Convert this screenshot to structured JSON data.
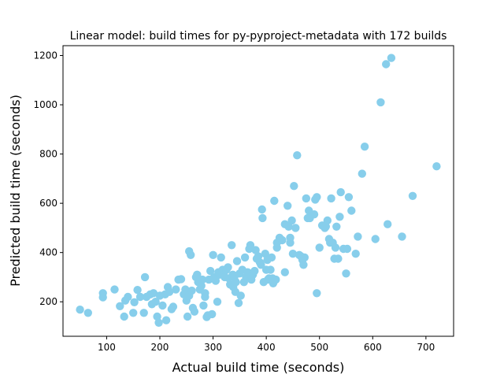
{
  "chart_data": {
    "type": "scatter",
    "title": "Linear model: build times for py-pyproject-metadata with 172 builds",
    "xlabel": "Actual build time (seconds)",
    "ylabel": "Predicted build time (seconds)",
    "xlim": [
      18,
      752
    ],
    "ylim": [
      60,
      1240
    ],
    "xticks": [
      100,
      200,
      300,
      400,
      500,
      600,
      700
    ],
    "yticks": [
      200,
      400,
      600,
      800,
      1000,
      1200
    ],
    "grid": false,
    "marker_color": "#87ceeb",
    "series": [
      {
        "points": [
          [
            50,
            168
          ],
          [
            65,
            155
          ],
          [
            93,
            235
          ],
          [
            93,
            218
          ],
          [
            115,
            250
          ],
          [
            125,
            182
          ],
          [
            133,
            140
          ],
          [
            135,
            205
          ],
          [
            140,
            220
          ],
          [
            150,
            155
          ],
          [
            152,
            198
          ],
          [
            158,
            248
          ],
          [
            163,
            220
          ],
          [
            170,
            155
          ],
          [
            172,
            300
          ],
          [
            175,
            220
          ],
          [
            182,
            230
          ],
          [
            185,
            190
          ],
          [
            188,
            235
          ],
          [
            192,
            200
          ],
          [
            195,
            140
          ],
          [
            198,
            115
          ],
          [
            200,
            225
          ],
          [
            205,
            185
          ],
          [
            210,
            230
          ],
          [
            212,
            125
          ],
          [
            215,
            260
          ],
          [
            218,
            240
          ],
          [
            222,
            170
          ],
          [
            225,
            180
          ],
          [
            230,
            250
          ],
          [
            235,
            290
          ],
          [
            240,
            292
          ],
          [
            245,
            230
          ],
          [
            248,
            250
          ],
          [
            250,
            205
          ],
          [
            252,
            140
          ],
          [
            255,
            405
          ],
          [
            255,
            225
          ],
          [
            258,
            390
          ],
          [
            260,
            245
          ],
          [
            262,
            175
          ],
          [
            265,
            160
          ],
          [
            268,
            300
          ],
          [
            270,
            310
          ],
          [
            272,
            280
          ],
          [
            275,
            250
          ],
          [
            278,
            265
          ],
          [
            280,
            290
          ],
          [
            282,
            185
          ],
          [
            285,
            235
          ],
          [
            285,
            220
          ],
          [
            288,
            138
          ],
          [
            290,
            145
          ],
          [
            292,
            290
          ],
          [
            295,
            325
          ],
          [
            298,
            150
          ],
          [
            300,
            390
          ],
          [
            302,
            300
          ],
          [
            305,
            285
          ],
          [
            308,
            200
          ],
          [
            310,
            320
          ],
          [
            312,
            310
          ],
          [
            315,
            380
          ],
          [
            318,
            330
          ],
          [
            320,
            310
          ],
          [
            322,
            300
          ],
          [
            325,
            330
          ],
          [
            328,
            340
          ],
          [
            330,
            295
          ],
          [
            332,
            270
          ],
          [
            335,
            430
          ],
          [
            337,
            310
          ],
          [
            338,
            260
          ],
          [
            340,
            300
          ],
          [
            342,
            240
          ],
          [
            343,
            280
          ],
          [
            345,
            365
          ],
          [
            348,
            195
          ],
          [
            350,
            315
          ],
          [
            352,
            225
          ],
          [
            355,
            330
          ],
          [
            358,
            280
          ],
          [
            360,
            380
          ],
          [
            362,
            300
          ],
          [
            365,
            320
          ],
          [
            368,
            415
          ],
          [
            370,
            430
          ],
          [
            372,
            290
          ],
          [
            372,
            305
          ],
          [
            375,
            310
          ],
          [
            378,
            325
          ],
          [
            380,
            410
          ],
          [
            382,
            375
          ],
          [
            385,
            385
          ],
          [
            388,
            360
          ],
          [
            390,
            350
          ],
          [
            392,
            575
          ],
          [
            393,
            540
          ],
          [
            395,
            280
          ],
          [
            398,
            395
          ],
          [
            400,
            330
          ],
          [
            402,
            370
          ],
          [
            403,
            290
          ],
          [
            405,
            295
          ],
          [
            408,
            330
          ],
          [
            410,
            380
          ],
          [
            412,
            295
          ],
          [
            413,
            275
          ],
          [
            415,
            285
          ],
          [
            415,
            610
          ],
          [
            418,
            290
          ],
          [
            420,
            420
          ],
          [
            420,
            440
          ],
          [
            425,
            460
          ],
          [
            430,
            450
          ],
          [
            435,
            515
          ],
          [
            435,
            320
          ],
          [
            440,
            590
          ],
          [
            442,
            505
          ],
          [
            445,
            460
          ],
          [
            445,
            440
          ],
          [
            448,
            530
          ],
          [
            450,
            395
          ],
          [
            452,
            670
          ],
          [
            455,
            500
          ],
          [
            458,
            795
          ],
          [
            462,
            390
          ],
          [
            465,
            385
          ],
          [
            468,
            370
          ],
          [
            470,
            350
          ],
          [
            472,
            380
          ],
          [
            475,
            620
          ],
          [
            478,
            540
          ],
          [
            480,
            570
          ],
          [
            482,
            540
          ],
          [
            490,
            555
          ],
          [
            492,
            615
          ],
          [
            495,
            235
          ],
          [
            495,
            625
          ],
          [
            500,
            420
          ],
          [
            505,
            510
          ],
          [
            510,
            500
          ],
          [
            512,
            505
          ],
          [
            515,
            530
          ],
          [
            518,
            455
          ],
          [
            520,
            440
          ],
          [
            522,
            620
          ],
          [
            525,
            440
          ],
          [
            528,
            375
          ],
          [
            530,
            420
          ],
          [
            532,
            505
          ],
          [
            535,
            375
          ],
          [
            538,
            545
          ],
          [
            540,
            645
          ],
          [
            545,
            415
          ],
          [
            550,
            315
          ],
          [
            552,
            415
          ],
          [
            555,
            625
          ],
          [
            560,
            570
          ],
          [
            568,
            395
          ],
          [
            572,
            465
          ],
          [
            580,
            720
          ],
          [
            585,
            830
          ],
          [
            605,
            455
          ],
          [
            615,
            1010
          ],
          [
            625,
            1165
          ],
          [
            628,
            515
          ],
          [
            635,
            1190
          ],
          [
            655,
            465
          ],
          [
            675,
            630
          ],
          [
            720,
            750
          ]
        ]
      }
    ]
  }
}
